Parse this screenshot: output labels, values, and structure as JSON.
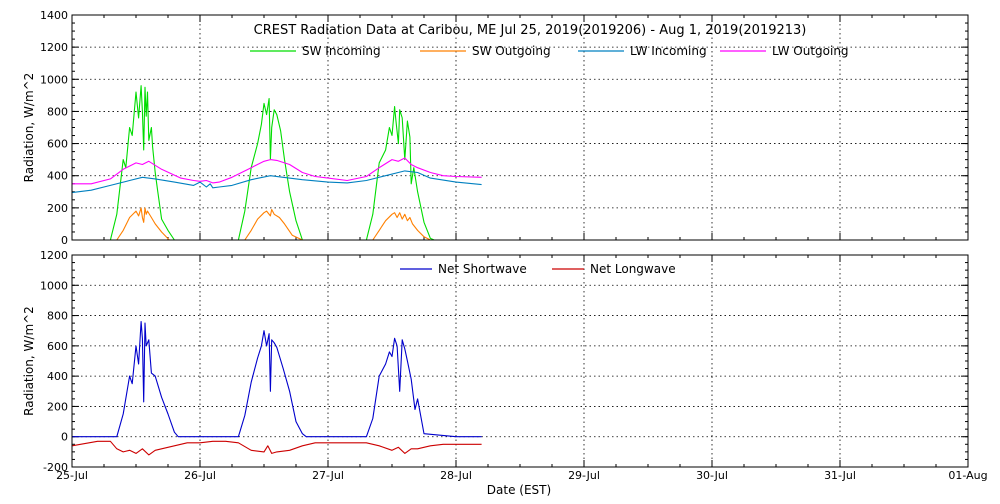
{
  "chart_data": [
    {
      "type": "line",
      "title": "CREST Radiation Data at Caribou, ME   Jul 25, 2019(2019206) - Aug  1, 2019(2019213)",
      "xlabel": "",
      "ylabel": "Radiation, W/m^2",
      "ylim": [
        0,
        1400
      ],
      "yticks": [
        "0",
        "200",
        "400",
        "600",
        "800",
        "1000",
        "1200",
        "1400"
      ],
      "xlim_days": [
        0,
        7
      ],
      "xticks": [
        "25-Jul",
        "26-Jul",
        "27-Jul",
        "28-Jul",
        "29-Jul",
        "30-Jul",
        "31-Jul",
        "01-Aug"
      ],
      "grid": "dotted",
      "legend": "top",
      "series": [
        {
          "name": "SW Incoming",
          "color": "#00dd00",
          "x": [
            0.0,
            0.3,
            0.35,
            0.4,
            0.42,
            0.45,
            0.47,
            0.5,
            0.52,
            0.54,
            0.55,
            0.56,
            0.57,
            0.58,
            0.59,
            0.6,
            0.62,
            0.63,
            0.65,
            0.67,
            0.7,
            0.75,
            0.8,
            0.83,
            1.0,
            1.3,
            1.35,
            1.4,
            1.45,
            1.48,
            1.5,
            1.52,
            1.54,
            1.55,
            1.56,
            1.58,
            1.6,
            1.63,
            1.66,
            1.7,
            1.75,
            1.8,
            1.83,
            2.0,
            2.3,
            2.35,
            2.4,
            2.45,
            2.48,
            2.5,
            2.52,
            2.53,
            2.55,
            2.56,
            2.58,
            2.6,
            2.62,
            2.64,
            2.65,
            2.67,
            2.7,
            2.75,
            2.8,
            2.83,
            3.2
          ],
          "y": [
            0,
            0,
            160,
            500,
            450,
            700,
            650,
            920,
            760,
            960,
            800,
            560,
            950,
            770,
            920,
            620,
            700,
            580,
            420,
            300,
            130,
            60,
            0,
            0,
            0,
            0,
            180,
            450,
            600,
            720,
            850,
            780,
            880,
            500,
            700,
            810,
            780,
            680,
            500,
            300,
            120,
            0,
            0,
            0,
            0,
            160,
            480,
            560,
            700,
            650,
            830,
            750,
            600,
            810,
            760,
            500,
            740,
            640,
            350,
            450,
            300,
            110,
            10,
            0,
            0
          ]
        },
        {
          "name": "SW Outgoing",
          "color": "#ff8000",
          "x": [
            0.0,
            0.35,
            0.4,
            0.45,
            0.5,
            0.52,
            0.54,
            0.55,
            0.56,
            0.57,
            0.58,
            0.59,
            0.62,
            0.65,
            0.7,
            0.76,
            0.8,
            1.0,
            1.35,
            1.4,
            1.45,
            1.5,
            1.52,
            1.55,
            1.56,
            1.58,
            1.62,
            1.66,
            1.72,
            1.8,
            2.0,
            2.35,
            2.4,
            2.45,
            2.5,
            2.52,
            2.54,
            2.56,
            2.58,
            2.6,
            2.62,
            2.64,
            2.66,
            2.7,
            2.75,
            2.8,
            3.2
          ],
          "y": [
            0,
            0,
            60,
            140,
            180,
            150,
            200,
            140,
            110,
            200,
            160,
            180,
            140,
            100,
            50,
            0,
            0,
            0,
            0,
            60,
            130,
            170,
            180,
            150,
            190,
            160,
            140,
            100,
            30,
            0,
            0,
            0,
            60,
            120,
            160,
            170,
            140,
            170,
            130,
            160,
            120,
            140,
            100,
            60,
            20,
            0,
            0
          ]
        },
        {
          "name": "LW Incoming",
          "color": "#0080c0",
          "x": [
            0.0,
            0.15,
            0.3,
            0.45,
            0.55,
            0.65,
            0.8,
            0.95,
            1.0,
            1.05,
            1.08,
            1.1,
            1.15,
            1.25,
            1.4,
            1.55,
            1.65,
            1.8,
            2.0,
            2.15,
            2.3,
            2.45,
            2.6,
            2.7,
            2.8,
            3.0,
            3.2
          ],
          "y": [
            295,
            310,
            340,
            370,
            390,
            380,
            360,
            340,
            360,
            330,
            350,
            325,
            330,
            340,
            375,
            400,
            390,
            375,
            360,
            355,
            370,
            400,
            430,
            420,
            385,
            360,
            345
          ]
        },
        {
          "name": "LW Outgoing",
          "color": "#ff00ff",
          "x": [
            0.0,
            0.15,
            0.3,
            0.4,
            0.5,
            0.55,
            0.6,
            0.7,
            0.85,
            0.95,
            1.0,
            1.05,
            1.1,
            1.15,
            1.25,
            1.4,
            1.5,
            1.55,
            1.6,
            1.7,
            1.8,
            1.9,
            2.0,
            2.15,
            2.3,
            2.4,
            2.5,
            2.55,
            2.6,
            2.65,
            2.7,
            2.8,
            2.9,
            3.0,
            3.2
          ],
          "y": [
            350,
            350,
            380,
            440,
            480,
            470,
            490,
            440,
            385,
            370,
            365,
            370,
            355,
            360,
            390,
            450,
            490,
            500,
            495,
            470,
            420,
            395,
            385,
            370,
            395,
            450,
            500,
            490,
            510,
            470,
            450,
            420,
            400,
            395,
            390
          ]
        }
      ]
    },
    {
      "type": "line",
      "title": "",
      "xlabel": "Date (EST)",
      "ylabel": "Radiation, W/m^2",
      "ylim": [
        -200,
        1200
      ],
      "yticks": [
        "-200",
        "0",
        "200",
        "400",
        "600",
        "800",
        "1000",
        "1200"
      ],
      "xlim_days": [
        0,
        7
      ],
      "xticks": [
        "25-Jul",
        "26-Jul",
        "27-Jul",
        "28-Jul",
        "29-Jul",
        "30-Jul",
        "31-Jul",
        "01-Aug"
      ],
      "grid": "dotted",
      "legend": "top",
      "series": [
        {
          "name": "Net Shortwave",
          "color": "#0000cc",
          "x": [
            0.0,
            0.35,
            0.4,
            0.45,
            0.47,
            0.5,
            0.52,
            0.54,
            0.55,
            0.56,
            0.57,
            0.58,
            0.6,
            0.62,
            0.65,
            0.7,
            0.75,
            0.8,
            0.83,
            1.0,
            1.3,
            1.35,
            1.4,
            1.45,
            1.48,
            1.5,
            1.52,
            1.54,
            1.55,
            1.56,
            1.58,
            1.6,
            1.65,
            1.7,
            1.75,
            1.8,
            1.83,
            2.0,
            2.3,
            2.35,
            2.4,
            2.45,
            2.48,
            2.5,
            2.52,
            2.54,
            2.56,
            2.58,
            2.6,
            2.62,
            2.65,
            2.68,
            2.7,
            2.75,
            3.0,
            3.2
          ],
          "y": [
            0,
            0,
            150,
            400,
            350,
            600,
            480,
            760,
            650,
            230,
            750,
            600,
            640,
            420,
            400,
            260,
            150,
            30,
            0,
            0,
            0,
            140,
            360,
            520,
            600,
            700,
            600,
            680,
            300,
            640,
            620,
            590,
            450,
            300,
            100,
            20,
            0,
            0,
            0,
            120,
            400,
            480,
            560,
            530,
            650,
            600,
            300,
            640,
            580,
            500,
            380,
            180,
            250,
            20,
            0,
            0
          ]
        },
        {
          "name": "Net Longwave",
          "color": "#cc0000",
          "x": [
            0.0,
            0.2,
            0.3,
            0.35,
            0.4,
            0.45,
            0.5,
            0.55,
            0.6,
            0.65,
            0.7,
            0.8,
            0.9,
            1.0,
            1.1,
            1.2,
            1.3,
            1.4,
            1.5,
            1.53,
            1.56,
            1.6,
            1.7,
            1.8,
            1.9,
            2.0,
            2.2,
            2.3,
            2.4,
            2.5,
            2.55,
            2.6,
            2.65,
            2.7,
            2.8,
            2.9,
            3.0,
            3.2
          ],
          "y": [
            -60,
            -30,
            -30,
            -80,
            -100,
            -90,
            -110,
            -80,
            -120,
            -90,
            -80,
            -60,
            -40,
            -40,
            -30,
            -30,
            -40,
            -90,
            -100,
            -60,
            -110,
            -100,
            -90,
            -60,
            -40,
            -40,
            -40,
            -40,
            -60,
            -90,
            -70,
            -110,
            -80,
            -80,
            -60,
            -50,
            -50,
            -50
          ]
        }
      ]
    }
  ]
}
